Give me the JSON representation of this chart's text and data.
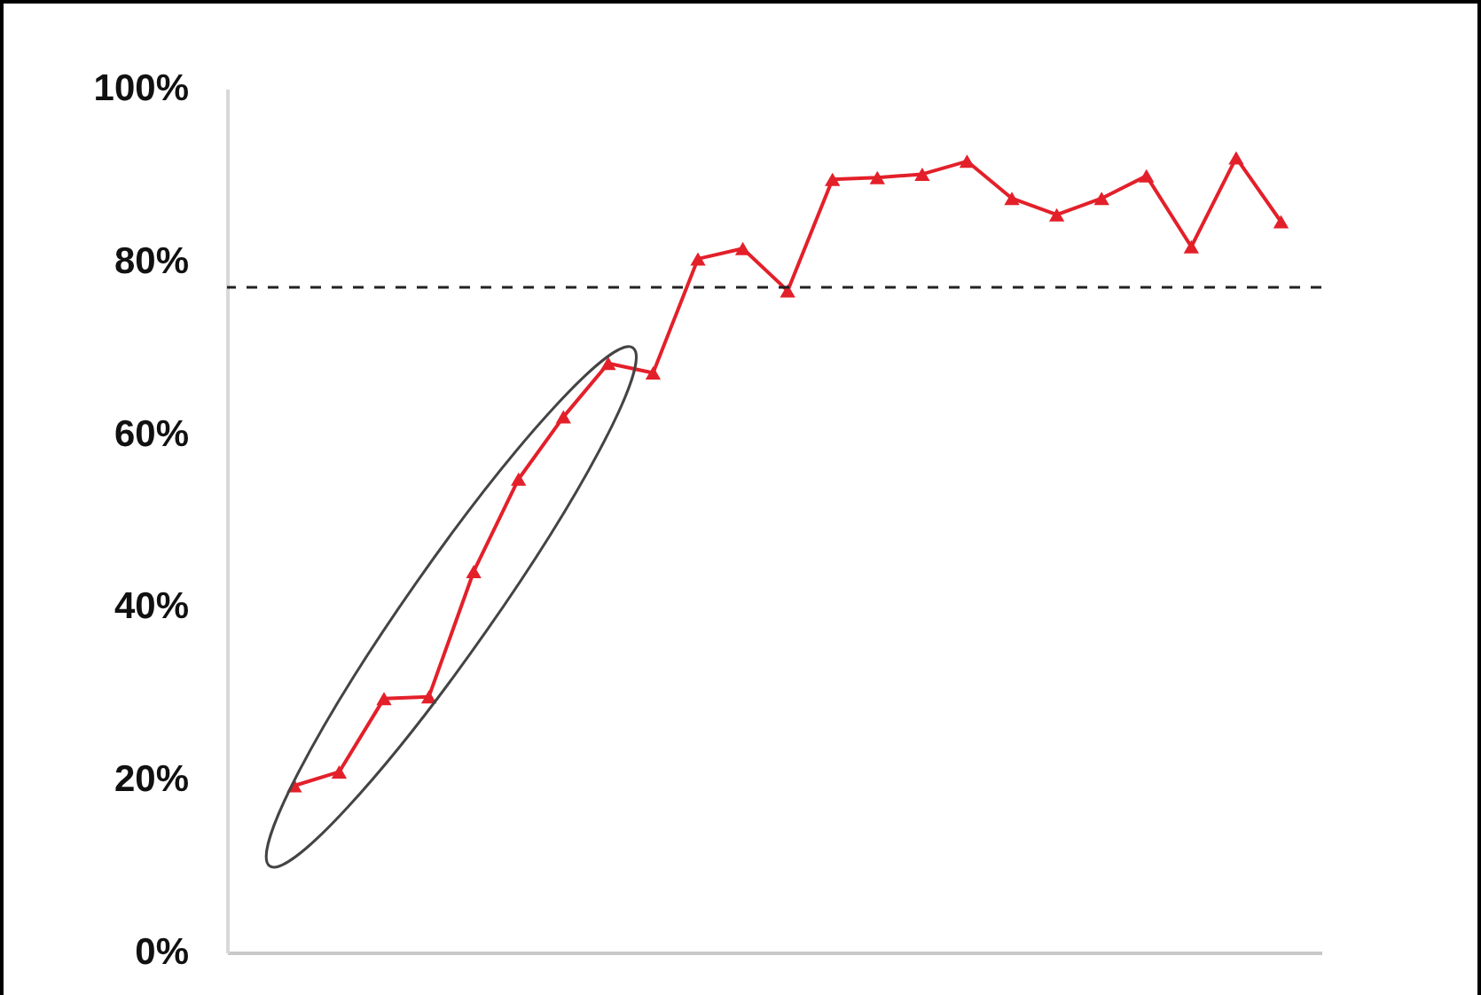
{
  "chart_data": {
    "type": "line",
    "categories": [
      null,
      null,
      null,
      null,
      null,
      null,
      null,
      null,
      null,
      null,
      null,
      null,
      null,
      null,
      null,
      null,
      null,
      null,
      null,
      null,
      null,
      null,
      null
    ],
    "series": [
      {
        "color": "#e3202a",
        "values": [
          19.3,
          20.9,
          29.4,
          29.6,
          44.1,
          54.8,
          62.0,
          68.2,
          67.1,
          80.3,
          81.5,
          76.6,
          89.5,
          89.7,
          90.1,
          91.6,
          87.3,
          85.4,
          87.3,
          89.9,
          81.7,
          92.0,
          84.6
        ]
      }
    ],
    "ylim": [
      0,
      100
    ],
    "yticks": [
      {
        "value": 0,
        "label": "0%"
      },
      {
        "value": 20,
        "label": "20%"
      },
      {
        "value": 40,
        "label": "40%"
      },
      {
        "value": 60,
        "label": "60%"
      },
      {
        "value": 80,
        "label": "80%"
      },
      {
        "value": 100,
        "label": "100%"
      }
    ],
    "tick_labels": "y",
    "grid": false,
    "marker": "triangle",
    "line_style": "solid",
    "ref_lines": [
      {
        "axis": "y",
        "value": 77,
        "color": "#222222",
        "line_style": "dashed"
      }
    ]
  }
}
